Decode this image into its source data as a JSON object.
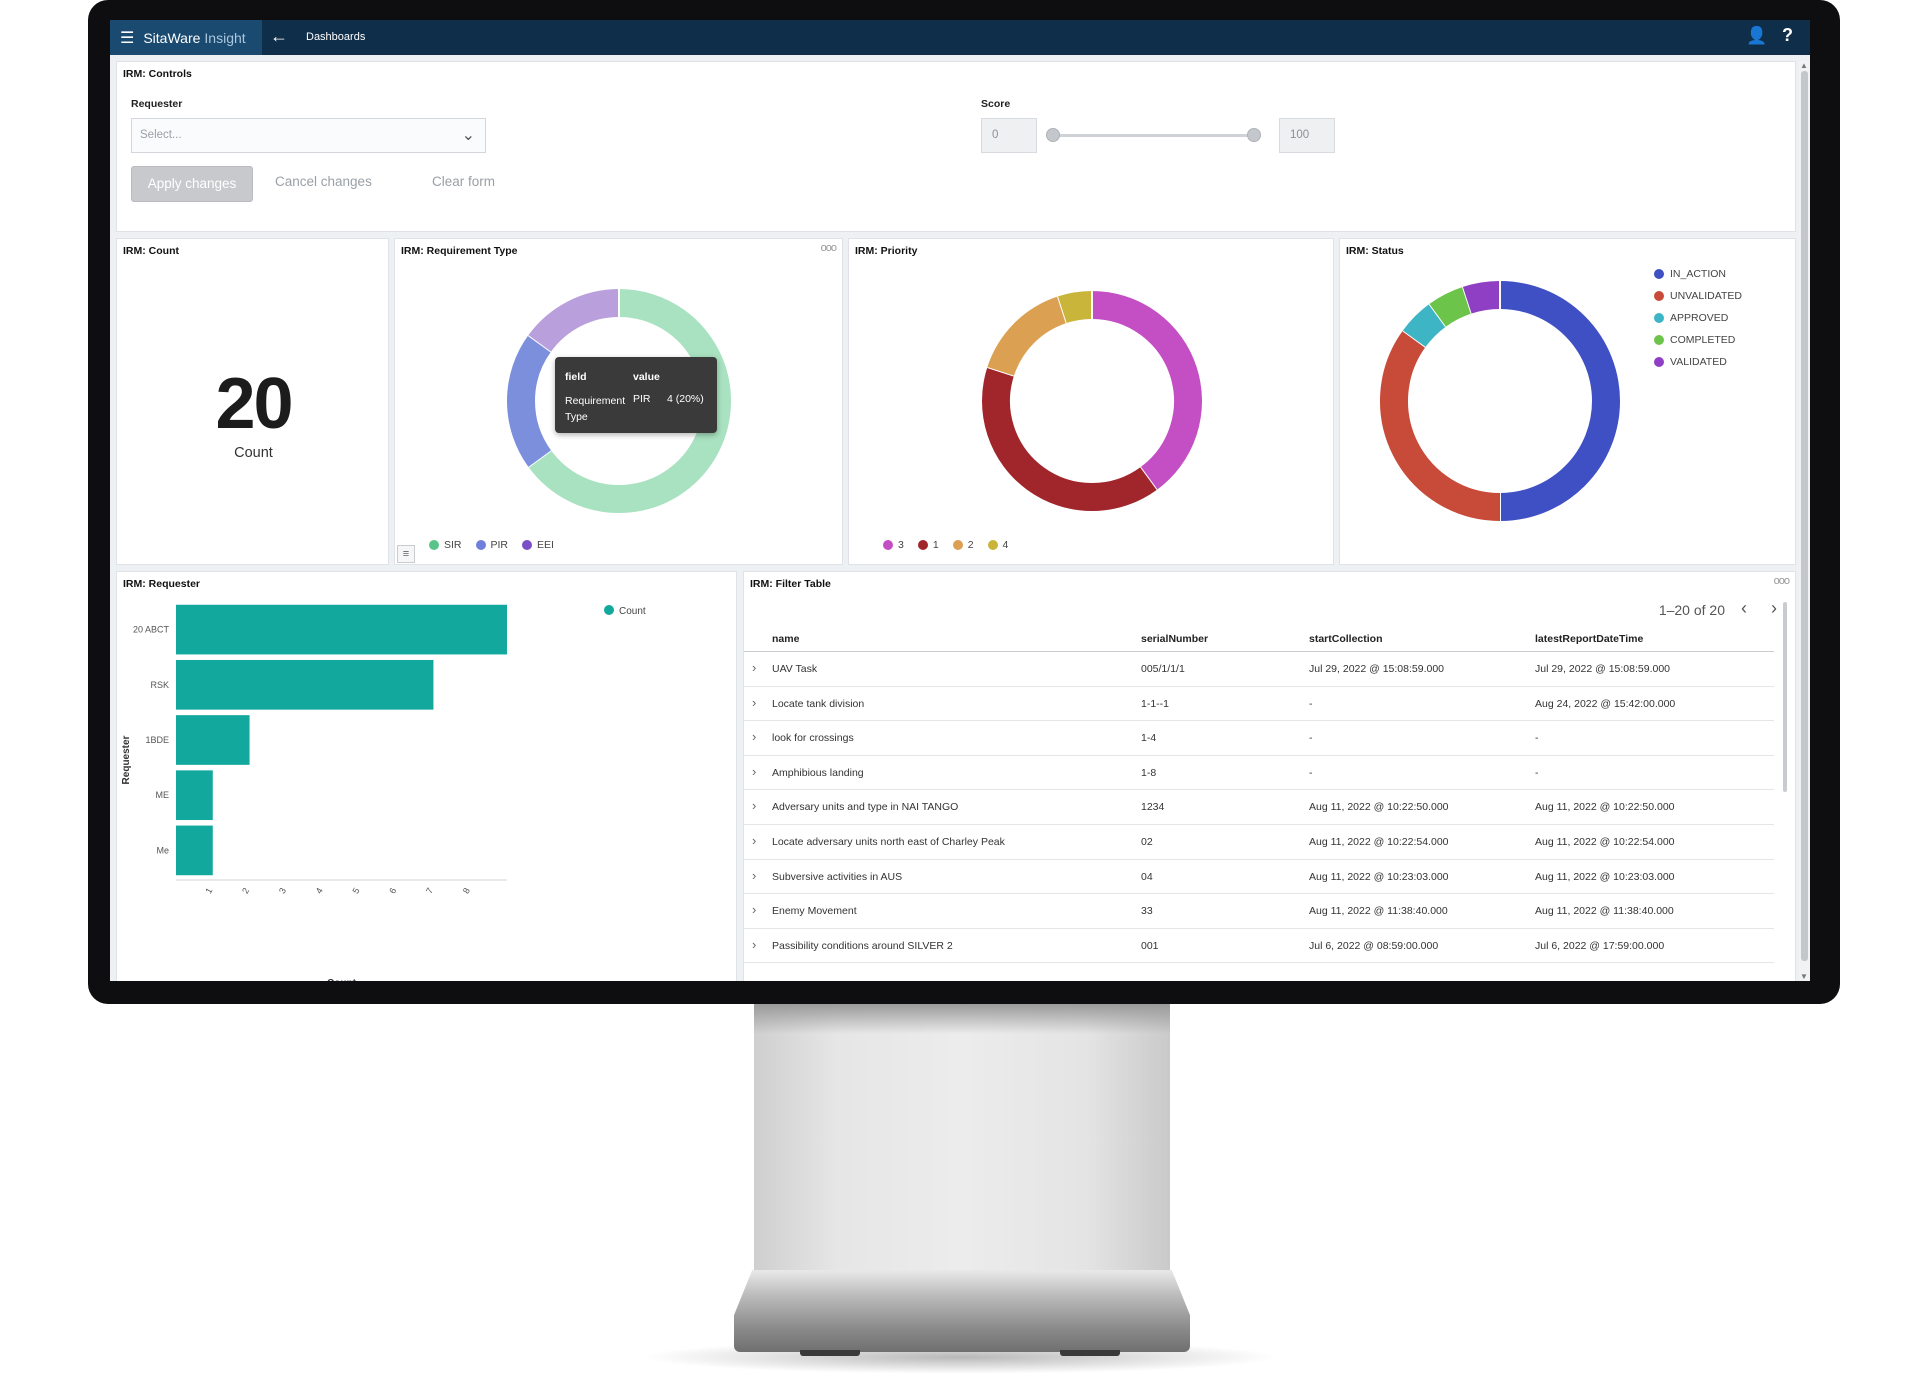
{
  "app": {
    "brand_main": "SitaWare",
    "brand_sub": "Insight",
    "breadcrumb": "Dashboards"
  },
  "controls": {
    "title": "IRM: Controls",
    "requester_label": "Requester",
    "requester_placeholder": "Select...",
    "score_label": "Score",
    "score_min": "0",
    "score_max": "100",
    "apply": "Apply changes",
    "cancel": "Cancel changes",
    "clear": "Clear form"
  },
  "count_panel": {
    "title": "IRM: Count",
    "value": "20",
    "label": "Count"
  },
  "reqtype_panel": {
    "title": "IRM: Requirement Type",
    "tooltip": {
      "h_field": "field",
      "h_value": "value",
      "field": "Requirement Type",
      "key": "PIR",
      "value": "4 (20%)"
    },
    "chart_data": {
      "type": "pie",
      "categories": [
        "SIR",
        "PIR",
        "EEI"
      ],
      "values": [
        13,
        4,
        3
      ],
      "colors": [
        "#a8e2c0",
        "#7b8fdc",
        "#b9a0dc"
      ],
      "legend_colors": [
        "#58c48a",
        "#6f7fdc",
        "#7a4fc8"
      ],
      "donut": true
    }
  },
  "priority_panel": {
    "title": "IRM: Priority",
    "chart_data": {
      "type": "pie",
      "categories": [
        "3",
        "1",
        "2",
        "4"
      ],
      "values": [
        8,
        8,
        3,
        1
      ],
      "colors": [
        "#c44fc4",
        "#a0262c",
        "#dba052",
        "#c8b53a"
      ],
      "donut": true
    }
  },
  "status_panel": {
    "title": "IRM: Status",
    "chart_data": {
      "type": "pie",
      "categories": [
        "IN_ACTION",
        "UNVALIDATED",
        "APPROVED",
        "COMPLETED",
        "VALIDATED"
      ],
      "values": [
        10,
        7,
        1,
        1,
        1
      ],
      "colors": [
        "#3f4fc4",
        "#c84a38",
        "#3db5c4",
        "#6cc44a",
        "#8f3fc4"
      ],
      "donut": true,
      "legend_position": "top-right"
    }
  },
  "requester_panel": {
    "title": "IRM: Requester",
    "chart_data": {
      "type": "bar",
      "orientation": "horizontal",
      "categories": [
        "20 ABCT",
        "RSK",
        "1BDE",
        "ME",
        "Me"
      ],
      "series": [
        {
          "name": "Count",
          "values": [
            9,
            7,
            2,
            1,
            1
          ]
        }
      ],
      "xlabel": "Count",
      "ylabel": "Requester",
      "x_ticks": [
        "1",
        "2",
        "3",
        "4",
        "5",
        "6",
        "7",
        "8"
      ],
      "xlim": [
        0,
        9
      ],
      "color": "#13a89e",
      "legend_position": "top-right"
    }
  },
  "table_panel": {
    "title": "IRM: Filter Table",
    "pager": "1–20 of 20",
    "columns": [
      "name",
      "serialNumber",
      "startCollection",
      "latestReportDateTime"
    ],
    "rows": [
      [
        "UAV Task",
        "005/1/1/1",
        "Jul 29, 2022 @ 15:08:59.000",
        "Jul 29, 2022 @ 15:08:59.000"
      ],
      [
        "Locate tank division",
        "1-1--1",
        "-",
        "Aug 24, 2022 @ 15:42:00.000"
      ],
      [
        "look for crossings",
        "1-4",
        "-",
        "-"
      ],
      [
        "Amphibious landing",
        "1-8",
        "-",
        "-"
      ],
      [
        "Adversary units and type in NAI TANGO",
        "1234",
        "Aug 11, 2022 @ 10:22:50.000",
        "Aug 11, 2022 @ 10:22:50.000"
      ],
      [
        "Locate adversary units north east of Charley Peak",
        "02",
        "Aug 11, 2022 @ 10:22:54.000",
        "Aug 11, 2022 @ 10:22:54.000"
      ],
      [
        "Subversive activities in AUS",
        "04",
        "Aug 11, 2022 @ 10:23:03.000",
        "Aug 11, 2022 @ 10:23:03.000"
      ],
      [
        "Enemy Movement",
        "33",
        "Aug 11, 2022 @ 11:38:40.000",
        "Aug 11, 2022 @ 11:38:40.000"
      ],
      [
        "Passibility conditions around SILVER 2",
        "001",
        "Jul 6, 2022 @ 08:59:00.000",
        "Jul 6, 2022 @ 17:59:00.000"
      ]
    ]
  },
  "icons": {
    "menu": "hamburger-icon",
    "back": "arrow-left-icon",
    "user": "user-icon",
    "help": "help-icon",
    "expand": "chevron-right-icon"
  }
}
